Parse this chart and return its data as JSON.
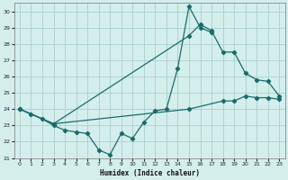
{
  "xlabel": "Humidex (Indice chaleur)",
  "xlim": [
    -0.5,
    23.5
  ],
  "ylim": [
    21,
    30.5
  ],
  "yticks": [
    21,
    22,
    23,
    24,
    25,
    26,
    27,
    28,
    29,
    30
  ],
  "xticks": [
    0,
    1,
    2,
    3,
    4,
    5,
    6,
    7,
    8,
    9,
    10,
    11,
    12,
    13,
    14,
    15,
    16,
    17,
    18,
    19,
    20,
    21,
    22,
    23
  ],
  "background_color": "#d4eeec",
  "grid_color": "#aed4d0",
  "line_color": "#1a6b6b",
  "lines": [
    {
      "x": [
        0,
        1,
        2,
        3,
        4,
        5,
        6,
        7,
        8,
        9,
        10,
        11,
        12,
        13,
        14,
        15,
        16,
        17
      ],
      "y": [
        24.0,
        23.7,
        23.4,
        23.0,
        22.7,
        22.6,
        22.5,
        21.5,
        21.2,
        22.5,
        22.2,
        23.2,
        23.9,
        24.0,
        26.5,
        30.3,
        29.0,
        28.7
      ]
    },
    {
      "x": [
        0,
        3,
        15,
        16,
        17,
        18,
        19,
        20,
        21,
        22,
        23
      ],
      "y": [
        24.0,
        23.1,
        28.5,
        29.2,
        28.8,
        27.5,
        27.5,
        26.2,
        25.8,
        25.7,
        24.8
      ]
    },
    {
      "x": [
        0,
        3,
        15,
        18,
        19,
        20,
        21,
        22,
        23
      ],
      "y": [
        24.0,
        23.1,
        24.0,
        24.5,
        24.5,
        24.8,
        24.7,
        24.7,
        24.6
      ]
    }
  ]
}
